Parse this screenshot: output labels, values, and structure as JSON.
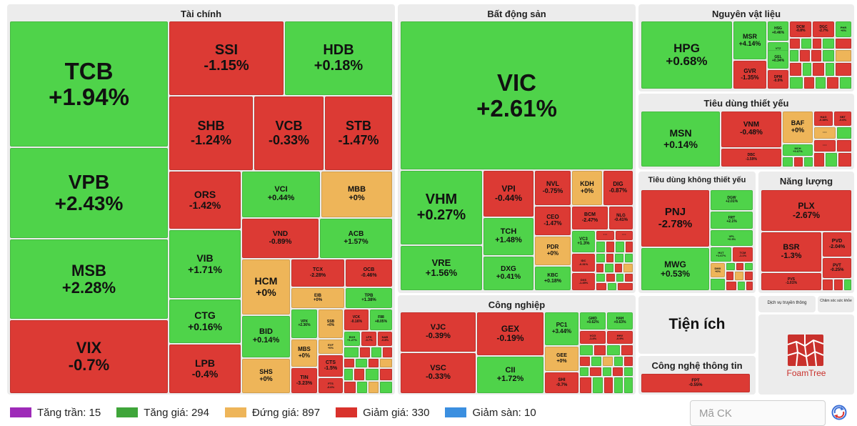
{
  "sectors": {
    "taichinh": "Tài chính",
    "batdongsan": "Bất động sản",
    "nguyenvatlieu": "Nguyên vật liệu",
    "tieudungthietyeu": "Tiêu dùng thiết yếu",
    "tieudungkhongthietyeu": "Tiêu dùng không thiết yếu",
    "nangluong": "Năng lượng",
    "congnghiep": "Công nghiệp",
    "tienich": "Tiện ích",
    "congnghethongtin": "Công nghệ thông tin",
    "dichvutruyenthong": "Dịch vụ truyền thông",
    "chamsocsuckhoe": "Chăm sóc sức khỏe"
  },
  "tiles": {
    "TCB": {
      "code": "TCB",
      "change": "+1.94%"
    },
    "VPB": {
      "code": "VPB",
      "change": "+2.43%"
    },
    "MSB": {
      "code": "MSB",
      "change": "+2.28%"
    },
    "VIX": {
      "code": "VIX",
      "change": "-0.7%"
    },
    "SSI": {
      "code": "SSI",
      "change": "-1.15%"
    },
    "HDB": {
      "code": "HDB",
      "change": "+0.18%"
    },
    "SHB": {
      "code": "SHB",
      "change": "-1.24%"
    },
    "VCB": {
      "code": "VCB",
      "change": "-0.33%"
    },
    "STB": {
      "code": "STB",
      "change": "-1.47%"
    },
    "ORS": {
      "code": "ORS",
      "change": "-1.42%"
    },
    "VCI": {
      "code": "VCI",
      "change": "+0.44%"
    },
    "MBB": {
      "code": "MBB",
      "change": "+0%"
    },
    "VND": {
      "code": "VND",
      "change": "-0.89%"
    },
    "ACB": {
      "code": "ACB",
      "change": "+1.57%"
    },
    "VIB": {
      "code": "VIB",
      "change": "+1.71%"
    },
    "CTG": {
      "code": "CTG",
      "change": "+0.16%"
    },
    "LPB": {
      "code": "LPB",
      "change": "-0.4%"
    },
    "HCM": {
      "code": "HCM",
      "change": "+0%"
    },
    "TCX": {
      "code": "TCX",
      "change": "-2.28%"
    },
    "OCB": {
      "code": "OCB",
      "change": "-0.46%"
    },
    "EIB": {
      "code": "EIB",
      "change": "+0%"
    },
    "TPB": {
      "code": "TPB",
      "change": "+1.38%"
    },
    "BID": {
      "code": "BID",
      "change": "+0.14%"
    },
    "SHS": {
      "code": "SHS",
      "change": "+0%"
    },
    "VPX": {
      "code": "VPX",
      "change": "+2.36%"
    },
    "SSB": {
      "code": "SSB",
      "change": "+0%"
    },
    "VCK": {
      "code": "VCK",
      "change": "-0.16%"
    },
    "F88": {
      "code": "F88",
      "change": "+8.05%"
    },
    "EVF": {
      "code": "EVF",
      "change": "+0%"
    },
    "BVH": {
      "code": "BVH",
      "change": "+1.27%"
    },
    "LPS": {
      "code": "LPS",
      "change": "-0.7%"
    },
    "NAB": {
      "code": "NAB",
      "change": "-0.8%"
    },
    "MBS": {
      "code": "MBS",
      "change": "+0%"
    },
    "CTS": {
      "code": "CTS",
      "change": "-1.5%"
    },
    "TIN": {
      "code": "TIN",
      "change": "-3.23%"
    },
    "FTS": {
      "code": "FTS",
      "change": "-0.6%"
    },
    "VIC": {
      "code": "VIC",
      "change": "+2.61%"
    },
    "VHM": {
      "code": "VHM",
      "change": "+0.27%"
    },
    "VRE": {
      "code": "VRE",
      "change": "+1.56%"
    },
    "VPI": {
      "code": "VPI",
      "change": "-0.44%"
    },
    "NVL": {
      "code": "NVL",
      "change": "-0.75%"
    },
    "KDH": {
      "code": "KDH",
      "change": "+0%"
    },
    "DIG": {
      "code": "DIG",
      "change": "-0.87%"
    },
    "CEO": {
      "code": "CEO",
      "change": "-1.47%"
    },
    "BCM": {
      "code": "BCM",
      "change": "-2.47%"
    },
    "NLG": {
      "code": "NLG",
      "change": "-0.41%"
    },
    "TCH": {
      "code": "TCH",
      "change": "+1.48%"
    },
    "PDR": {
      "code": "PDR",
      "change": "+0%"
    },
    "VC3": {
      "code": "VC3",
      "change": "+1.3%"
    },
    "IDC": {
      "code": "IDC",
      "change": "-0.31%"
    },
    "DXG": {
      "code": "DXG",
      "change": "+0.41%"
    },
    "KBC": {
      "code": "KBC",
      "change": "+0.18%"
    },
    "DXS": {
      "code": "DXS",
      "change": "-1.45%"
    },
    "HPG": {
      "code": "HPG",
      "change": "+0.68%"
    },
    "MSR": {
      "code": "MSR",
      "change": "+4.14%"
    },
    "GVR": {
      "code": "GVR",
      "change": "-1.35%"
    },
    "HSG": {
      "code": "HSG",
      "change": "+0.46%"
    },
    "DCM": {
      "code": "DCM",
      "change": "-0.8%"
    },
    "DGC": {
      "code": "DGC",
      "change": "-2.7%"
    },
    "PHR": {
      "code": "PHR",
      "change": "+0%"
    },
    "VTZ": {
      "code": "VTZ",
      "change": "+0.49%"
    },
    "GEL": {
      "code": "GEL",
      "change": "+0.34%"
    },
    "DPM": {
      "code": "DPM",
      "change": "-0.9%"
    },
    "MSN": {
      "code": "MSN",
      "change": "+0.14%"
    },
    "VNM": {
      "code": "VNM",
      "change": "-0.48%"
    },
    "BAF": {
      "code": "BAF",
      "change": "+0%"
    },
    "HAG": {
      "code": "HAG",
      "change": "-0.38%"
    },
    "SBT": {
      "code": "SBT",
      "change": "-0.6%"
    },
    "DBC": {
      "code": "DBC",
      "change": "-1.59%"
    },
    "MCH": {
      "code": "MCH",
      "change": "+0.07%"
    },
    "PNJ": {
      "code": "PNJ",
      "change": "-2.78%"
    },
    "DGW": {
      "code": "DGW",
      "change": "+2.01%"
    },
    "FRT": {
      "code": "FRT",
      "change": "+2.1%"
    },
    "VPL": {
      "code": "VPL",
      "change": "+0.5%"
    },
    "HUT": {
      "code": "HUT",
      "change": "+1.67%"
    },
    "TCM": {
      "code": "TCM",
      "change": "-1.1%"
    },
    "MWG": {
      "code": "MWG",
      "change": "+0.53%"
    },
    "DMX": {
      "code": "DMX",
      "change": "+0%"
    },
    "PLX": {
      "code": "PLX",
      "change": "-2.67%"
    },
    "BSR": {
      "code": "BSR",
      "change": "-1.3%"
    },
    "PVD": {
      "code": "PVD",
      "change": "-2.04%"
    },
    "PVT": {
      "code": "PVT",
      "change": "-0.25%"
    },
    "PVS": {
      "code": "PVS",
      "change": "-1.01%"
    },
    "VJC": {
      "code": "VJC",
      "change": "-0.39%"
    },
    "GEX": {
      "code": "GEX",
      "change": "-0.19%"
    },
    "PC1": {
      "code": "PC1",
      "change": "+3.44%"
    },
    "GMD": {
      "code": "GMD",
      "change": "+0.62%"
    },
    "HAH": {
      "code": "HAH",
      "change": "+0.63%"
    },
    "VCG": {
      "code": "VCG",
      "change": "-1.4%"
    },
    "HHV": {
      "code": "HHV",
      "change": "-0.9%"
    },
    "VSC": {
      "code": "VSC",
      "change": "-0.33%"
    },
    "CII": {
      "code": "CII",
      "change": "+1.72%"
    },
    "GEE": {
      "code": "GEE",
      "change": "+0%"
    },
    "SHI": {
      "code": "SHI",
      "change": "-0.7%"
    },
    "FPT": {
      "code": "FPT",
      "change": "-0.55%"
    },
    "more": "···"
  },
  "colors": {
    "ceiling": "#9e2ab8",
    "up": "#3fa53a",
    "flat": "#eeb559",
    "down": "#d9322c",
    "floor": "#3b8fe0"
  },
  "legend": {
    "ceiling": "Tăng trần: 15",
    "up": "Tăng giá: 294",
    "flat": "Đứng giá: 897",
    "down": "Giảm giá: 330",
    "floor": "Giảm sàn: 10"
  },
  "search": {
    "placeholder": "Mã CK"
  },
  "logo": {
    "text": "FoamTree",
    "icon": "foamtree-logo-icon"
  },
  "corner_icon": "refresh-globe-icon"
}
